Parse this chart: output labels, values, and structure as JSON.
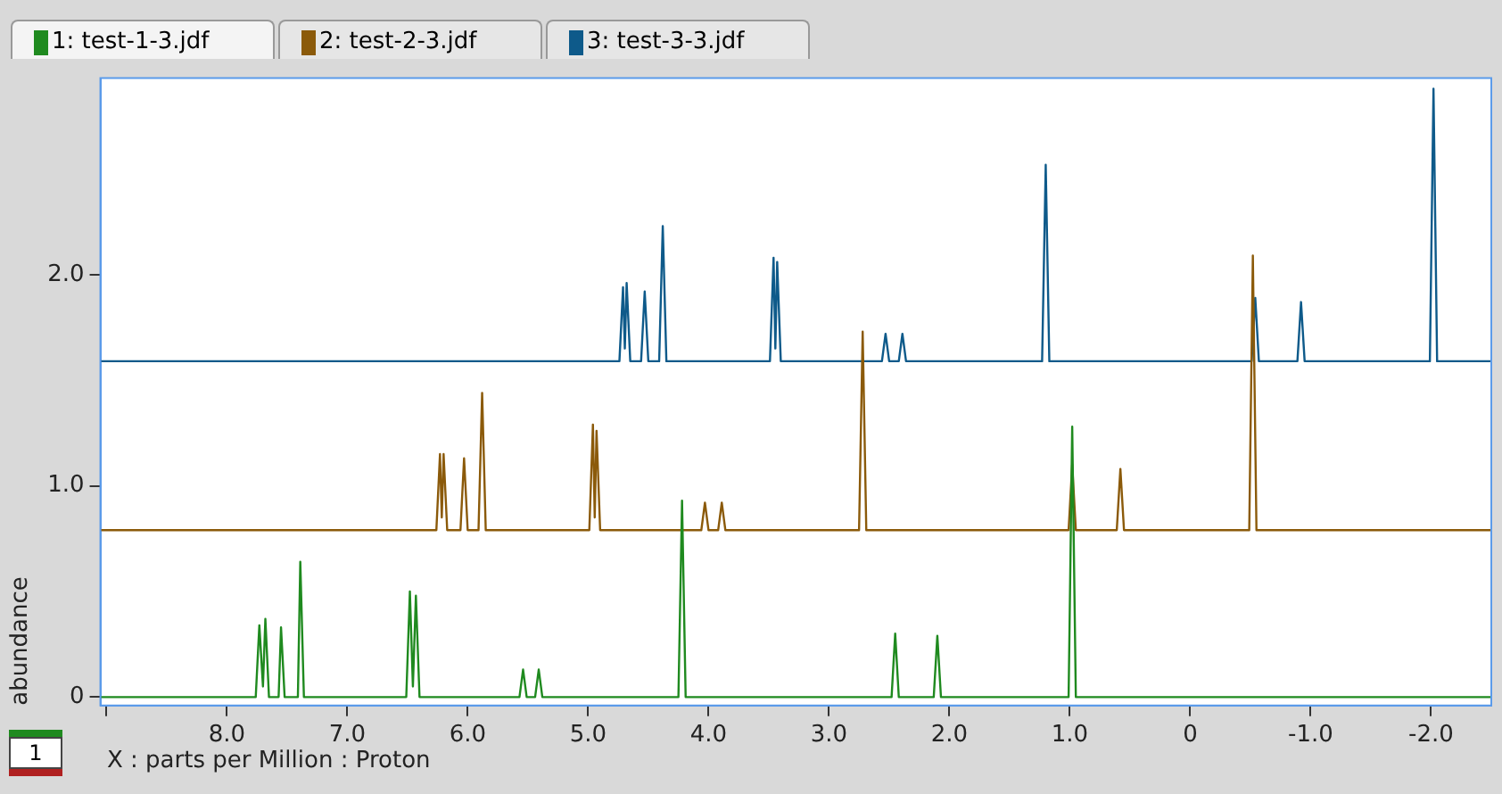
{
  "chart_data": {
    "type": "line",
    "xlabel": "X : parts per Million : Proton",
    "ylabel": "abundance",
    "xlim": [
      9.05,
      -2.5
    ],
    "ylim": [
      -0.04,
      2.93
    ],
    "xticks": [
      {
        "value": 9,
        "label": null
      },
      {
        "value": 8,
        "label": "8.0"
      },
      {
        "value": 7,
        "label": "7.0"
      },
      {
        "value": 6,
        "label": "6.0"
      },
      {
        "value": 5,
        "label": "5.0"
      },
      {
        "value": 4,
        "label": "4.0"
      },
      {
        "value": 3,
        "label": "3.0"
      },
      {
        "value": 2,
        "label": "2.0"
      },
      {
        "value": 1,
        "label": "1.0"
      },
      0,
      {
        "value": -1,
        "label": "-1.0"
      },
      {
        "value": -2,
        "label": "-2.0"
      }
    ],
    "yticks": [
      0,
      {
        "value": 1,
        "label": "1.0"
      },
      {
        "value": 2,
        "label": "2.0"
      }
    ],
    "grid": false,
    "legend": "top left",
    "marker": "none",
    "line_style": "solid",
    "annotations": [
      "1"
    ],
    "series": [
      {
        "name": "1: test-1-3.jdf",
        "color": "#1f8a1f",
        "x": [
          9.05,
          7.76,
          7.73,
          7.7,
          7.68,
          7.65,
          7.57,
          7.55,
          7.52,
          7.41,
          7.39,
          7.36,
          6.51,
          6.48,
          6.455,
          6.43,
          6.4,
          5.57,
          5.54,
          5.51,
          5.44,
          5.41,
          5.38,
          4.25,
          4.22,
          4.19,
          2.48,
          2.45,
          2.42,
          2.13,
          2.1,
          2.07,
          1.01,
          0.98,
          0.95,
          -2.5
        ],
        "values": [
          0,
          0,
          0.34,
          0.05,
          0.37,
          0,
          0,
          0.33,
          0,
          0,
          0.64,
          0,
          0,
          0.5,
          0.05,
          0.48,
          0,
          0,
          0.13,
          0,
          0,
          0.13,
          0,
          0,
          0.93,
          0,
          0,
          0.3,
          0,
          0,
          0.29,
          0,
          0,
          1.28,
          0,
          0
        ]
      },
      {
        "name": "2: test-2-3.jdf",
        "color": "#8b5a0a",
        "x": [
          9.05,
          6.26,
          6.23,
          6.215,
          6.2,
          6.17,
          6.06,
          6.03,
          6.0,
          5.91,
          5.88,
          5.85,
          4.99,
          4.96,
          4.945,
          4.93,
          4.9,
          4.06,
          4.03,
          4.0,
          3.92,
          3.89,
          3.86,
          2.75,
          2.72,
          2.69,
          1.01,
          0.98,
          0.95,
          0.61,
          0.58,
          0.55,
          -0.49,
          -0.52,
          -0.55,
          -2.5
        ],
        "values": [
          0.79,
          0.79,
          1.15,
          0.85,
          1.15,
          0.79,
          0.79,
          1.13,
          0.79,
          0.79,
          1.44,
          0.79,
          0.79,
          1.29,
          0.85,
          1.26,
          0.79,
          0.79,
          0.92,
          0.79,
          0.79,
          0.92,
          0.79,
          0.79,
          1.73,
          0.79,
          0.79,
          1.1,
          0.79,
          0.79,
          1.08,
          0.79,
          0.79,
          2.09,
          0.79,
          0.79
        ]
      },
      {
        "name": "3: test-3-3.jdf",
        "color": "#0e5a8a",
        "x": [
          9.05,
          4.74,
          4.71,
          4.695,
          4.68,
          4.65,
          4.56,
          4.53,
          4.5,
          4.41,
          4.38,
          4.35,
          3.49,
          3.46,
          3.445,
          3.43,
          3.4,
          2.56,
          2.53,
          2.5,
          2.42,
          2.39,
          2.36,
          1.23,
          1.2,
          1.17,
          -0.51,
          -0.54,
          -0.57,
          -0.89,
          -0.92,
          -0.95,
          -1.99,
          -2.02,
          -2.05,
          -2.5
        ],
        "values": [
          1.59,
          1.59,
          1.94,
          1.65,
          1.96,
          1.59,
          1.59,
          1.92,
          1.59,
          1.59,
          2.23,
          1.59,
          1.59,
          2.08,
          1.65,
          2.06,
          1.59,
          1.59,
          1.72,
          1.59,
          1.59,
          1.72,
          1.59,
          1.59,
          2.52,
          1.59,
          1.59,
          1.89,
          1.59,
          1.59,
          1.87,
          1.59,
          1.59,
          2.88,
          1.59,
          1.59
        ]
      }
    ]
  }
}
